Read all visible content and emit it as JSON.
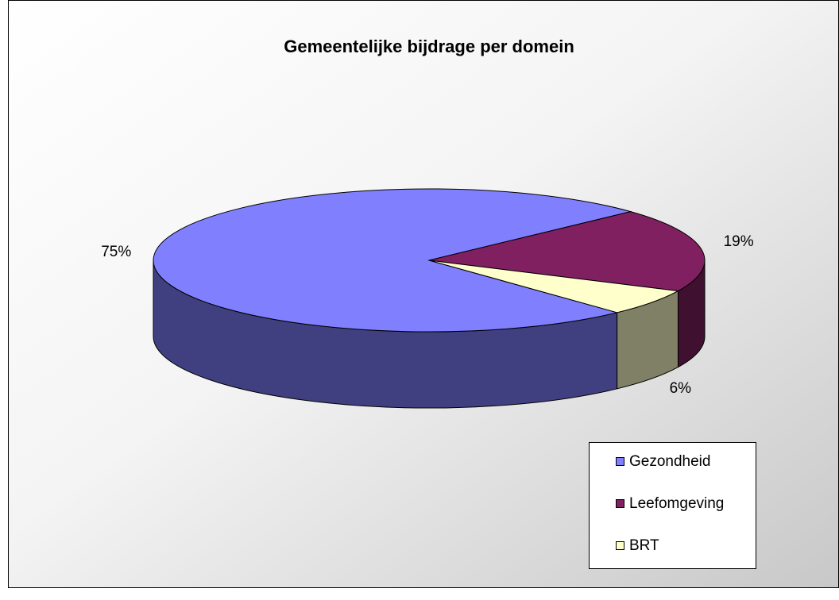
{
  "chart_data": {
    "type": "pie",
    "title": "Gemeentelijke bijdrage per domein",
    "categories": [
      "Gezondheid",
      "Leefomgeving",
      "BRT"
    ],
    "values": [
      75,
      19,
      6
    ],
    "value_labels": [
      "75%",
      "19%",
      "6%"
    ],
    "colors": [
      "#8080ff",
      "#802060",
      "#ffffcc"
    ],
    "legend": "bottom-right"
  }
}
